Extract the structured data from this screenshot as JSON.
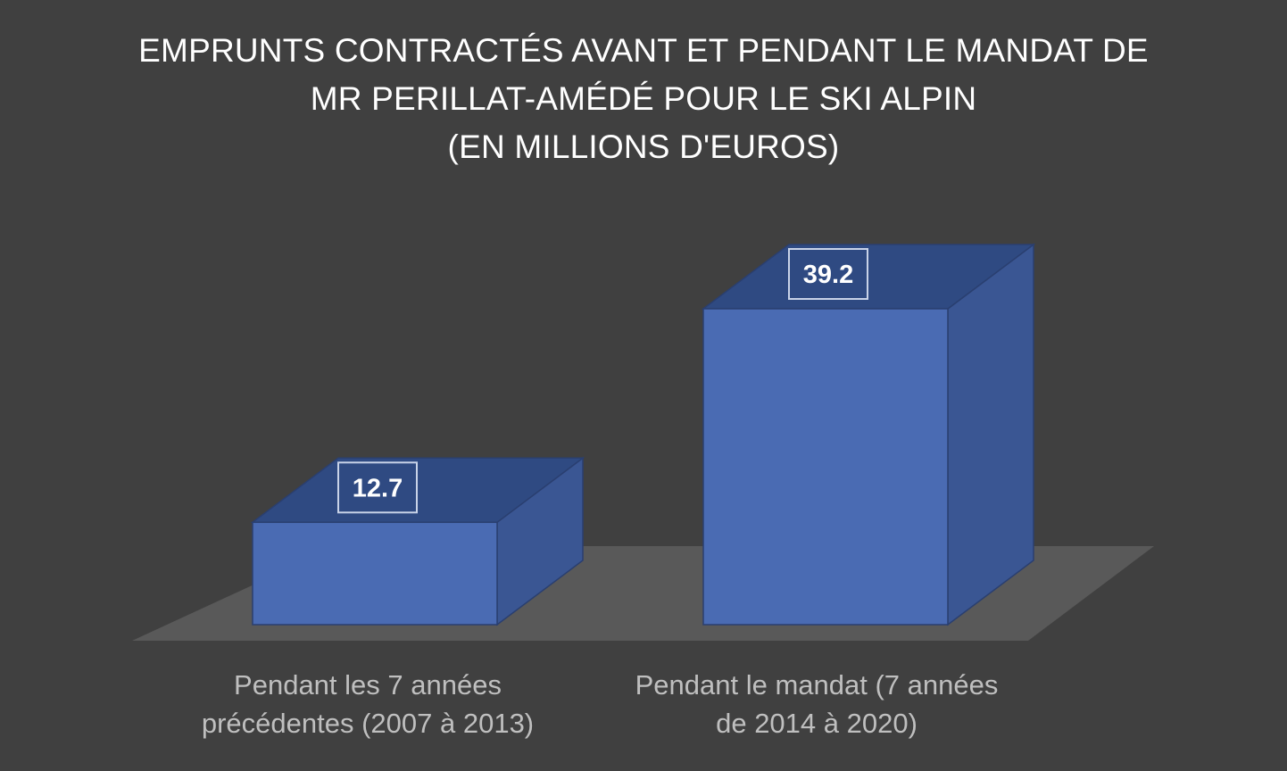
{
  "chart_data": {
    "type": "bar",
    "title_lines": [
      "EMPRUNTS CONTRACTÉS  AVANT ET PENDANT LE MANDAT DE",
      "MR PERILLAT-AMÉDÉ POUR LE SKI ALPIN",
      "(EN MILLIONS D'EUROS)"
    ],
    "categories": [
      {
        "line1": "Pendant les 7 années",
        "line2": "précédentes (2007 à 2013)"
      },
      {
        "line1": "Pendant le mandat (7 années",
        "line2": "de 2014 à 2020)"
      }
    ],
    "values": [
      12.7,
      39.2
    ],
    "data_labels": [
      "12.7",
      "39.2"
    ],
    "style": "3d-column",
    "grid": false,
    "legend": "none",
    "colors": {
      "background": "#404040",
      "floor": "#595959",
      "bar_front": "#4a6bb3",
      "bar_top": "#2f4a82",
      "bar_side": "#3a5693",
      "bar_edge": "#2a3f70",
      "title": "#ffffff",
      "category_label": "#bfbfbf"
    }
  }
}
